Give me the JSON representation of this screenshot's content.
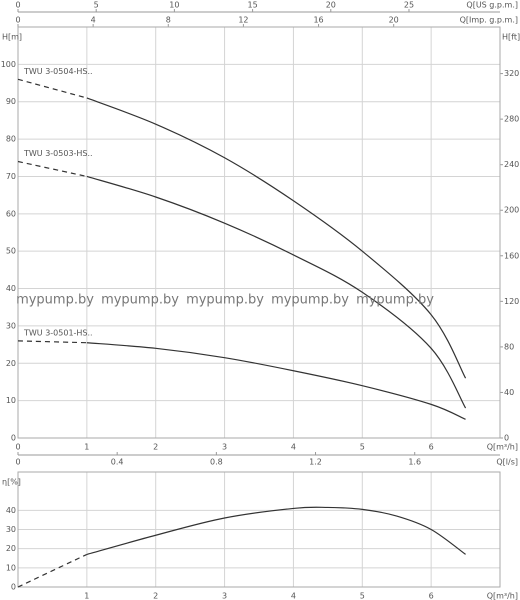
{
  "chart_data": [
    {
      "type": "line",
      "x_label": "Q[m³/h]",
      "y_label": "H[m]",
      "y2_label": "H[ft]",
      "xlim": [
        0,
        7
      ],
      "xticks": [
        0,
        1,
        2,
        3,
        4,
        5,
        6
      ],
      "ylim": [
        0,
        110
      ],
      "yticks": [
        0,
        10,
        20,
        30,
        40,
        50,
        60,
        70,
        80,
        90,
        100
      ],
      "y2lim": [
        0,
        360.9
      ],
      "y2ticks": [
        0,
        40,
        80,
        120,
        160,
        200,
        240,
        280,
        320
      ],
      "grid": true,
      "dashed_until_x": 1,
      "extra_x_axes": [
        {
          "label": "Q[US g.p.m.]",
          "lim": [
            0,
            30.82
          ],
          "ticks": [
            0,
            5,
            10,
            15,
            20,
            25
          ]
        },
        {
          "label": "Q[Imp. g.p.m.]",
          "lim": [
            0,
            25.66
          ],
          "ticks": [
            0,
            4,
            8,
            12,
            16,
            20
          ]
        }
      ],
      "x": [
        0,
        1,
        2,
        3,
        4,
        5,
        6,
        6.5
      ],
      "series": [
        {
          "name": "TWU 3-0504-HS..",
          "color": "#333333",
          "values": [
            96,
            91,
            84,
            75,
            63.5,
            50,
            33,
            16
          ]
        },
        {
          "name": "TWU 3-0503-HS..",
          "color": "#333333",
          "values": [
            74,
            70,
            64.5,
            57.5,
            49,
            39,
            24,
            8
          ]
        },
        {
          "name": "TWU 3-0501-HS..",
          "color": "#333333",
          "values": [
            26,
            25.5,
            24,
            21.5,
            18,
            14,
            9,
            5
          ]
        }
      ],
      "annotations": [
        "mypump.by",
        "mypump.by",
        "mypump.by",
        "mypump.by",
        "mypump.by"
      ]
    },
    {
      "type": "line",
      "x_label": "Q[m³/h]",
      "y_label": "η[%]",
      "xlim": [
        0,
        7
      ],
      "xticks": [
        1,
        2,
        3,
        4,
        5,
        6
      ],
      "ylim": [
        0,
        60
      ],
      "yticks": [
        0,
        10,
        20,
        30,
        40
      ],
      "grid": true,
      "dashed_until_x": 1,
      "extra_x_axes": [
        {
          "label": "Q[l/s]",
          "lim": [
            0,
            1.944
          ],
          "ticks": [
            0,
            0.4,
            0.8,
            1.2,
            1.6
          ]
        }
      ],
      "x": [
        0,
        1,
        2,
        3,
        4,
        4.5,
        5,
        5.5,
        6,
        6.5
      ],
      "series": [
        {
          "color": "#333333",
          "values": [
            0,
            17,
            27,
            36,
            41,
            41.5,
            40.5,
            37,
            30,
            17
          ]
        }
      ]
    }
  ]
}
